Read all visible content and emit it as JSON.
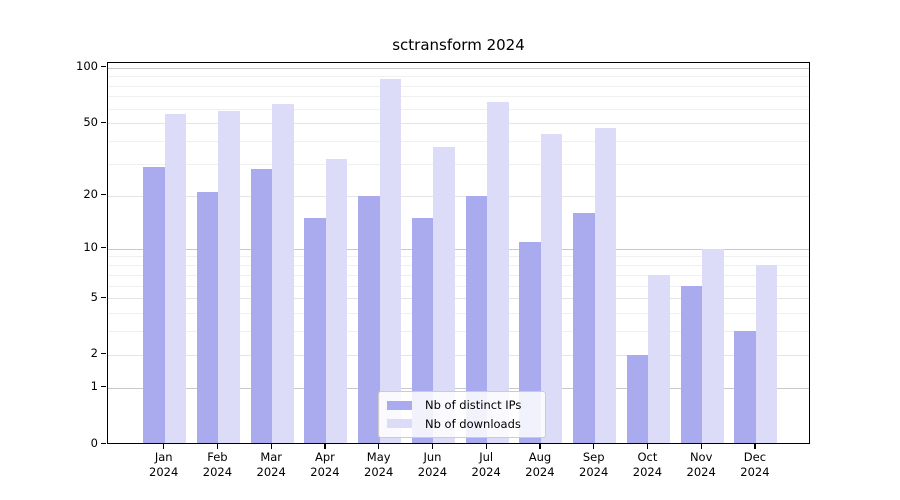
{
  "title": "sctransform 2024",
  "legend": {
    "items": [
      {
        "label": "Nb of distinct IPs"
      },
      {
        "label": "Nb of downloads"
      }
    ]
  },
  "chart_data": {
    "type": "bar",
    "title": "sctransform 2024",
    "categories": [
      "Jan",
      "Feb",
      "Mar",
      "Apr",
      "May",
      "Jun",
      "Jul",
      "Aug",
      "Sep",
      "Oct",
      "Nov",
      "Dec"
    ],
    "x_sublabel": "2024",
    "series": [
      {
        "name": "Nb of distinct IPs",
        "color": "#aaaaee",
        "values": [
          29,
          21,
          28,
          15,
          20,
          15,
          20,
          11,
          16,
          2,
          6,
          3
        ]
      },
      {
        "name": "Nb of downloads",
        "color": "#dcdcf8",
        "values": [
          56,
          58,
          64,
          32,
          87,
          37,
          65,
          44,
          47,
          7,
          10,
          8
        ]
      }
    ],
    "xlabel": "",
    "ylabel": "",
    "y_scale": "log1p",
    "ylim": [
      0,
      106
    ],
    "y_major_ticks": [
      0,
      1,
      2,
      5,
      10,
      20,
      50,
      100
    ],
    "y_minor_gridlines": [
      3,
      4,
      6,
      7,
      8,
      9,
      30,
      40,
      60,
      70,
      80,
      90
    ],
    "grid": "horizontal",
    "legend_position": "bottom-center-inside"
  }
}
